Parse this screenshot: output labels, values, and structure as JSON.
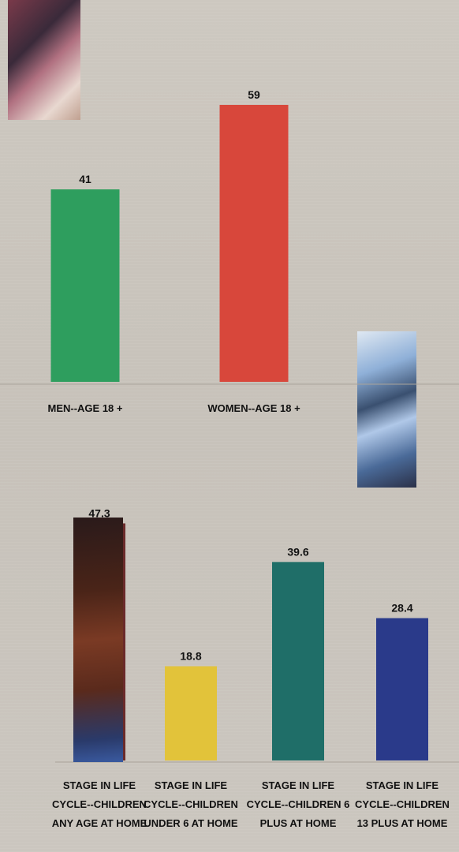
{
  "chart_data": [
    {
      "type": "bar",
      "categories": [
        "MEN--AGE 18 +",
        "WOMEN--AGE 18 +"
      ],
      "values": [
        41,
        59
      ],
      "value_labels": [
        "41",
        "59"
      ],
      "colors": [
        "#2e9e5e",
        "#d8473b"
      ],
      "ylim": [
        0,
        60
      ],
      "grid": false
    },
    {
      "type": "bar",
      "categories": [
        [
          "STAGE IN LIFE",
          "CYCLE--CHILDREN",
          "ANY AGE AT HOME"
        ],
        [
          "STAGE IN LIFE",
          "CYCLE--CHILDREN",
          "UNDER 6 AT HOME"
        ],
        [
          "STAGE IN LIFE",
          "CYCLE--CHILDREN 6",
          "PLUS AT HOME"
        ],
        [
          "STAGE IN LIFE",
          "CYCLE--CHILDREN",
          "13 PLUS AT HOME"
        ]
      ],
      "values": [
        47.3,
        18.8,
        39.6,
        28.4
      ],
      "value_labels": [
        "47.3",
        "18.8",
        "39.6",
        "28.4"
      ],
      "colors": [
        "#6a2a2a",
        "#e2c33a",
        "#1f6e68",
        "#2a3a8a"
      ],
      "ylim": [
        0,
        48
      ],
      "grid": false
    }
  ]
}
